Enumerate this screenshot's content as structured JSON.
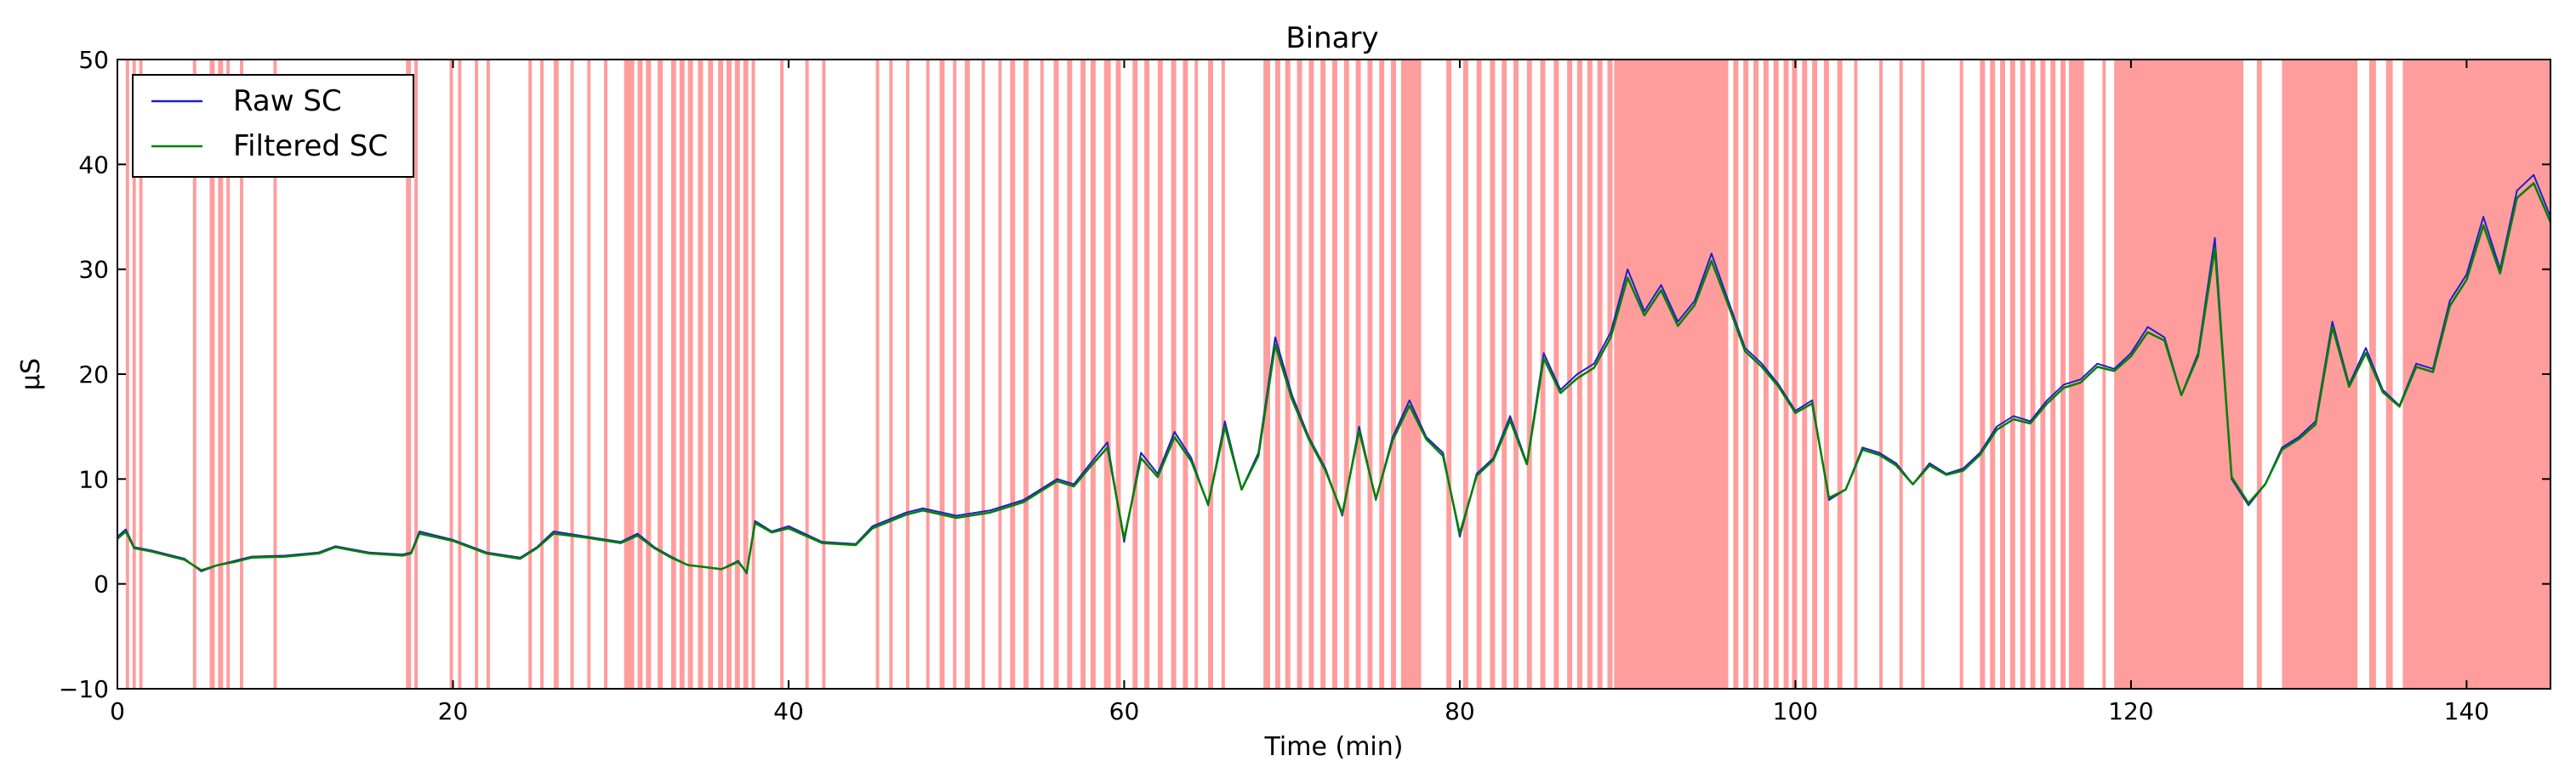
{
  "chart_data": {
    "type": "line",
    "title": "Binary",
    "xlabel": "Time (min)",
    "ylabel": "μS",
    "xlim": [
      0,
      145
    ],
    "ylim": [
      -10,
      50
    ],
    "x_ticks": [
      0,
      20,
      40,
      60,
      80,
      100,
      120,
      140
    ],
    "y_ticks": [
      -10,
      0,
      10,
      20,
      30,
      40,
      50
    ],
    "grid": false,
    "legend_position": "top-left",
    "colors": {
      "raw": "#1f1fcc",
      "filtered": "#008000",
      "shading": "#ff4c4c"
    },
    "series": [
      {
        "name": "Raw SC",
        "x": [
          0,
          0.5,
          1,
          2,
          3,
          4,
          5,
          6,
          7,
          8,
          10,
          12,
          13,
          15,
          17,
          17.5,
          18,
          20,
          22,
          24,
          25,
          26,
          28,
          30,
          31,
          32,
          33,
          34,
          35,
          36,
          37,
          37.5,
          38,
          39,
          40,
          42,
          44,
          45,
          47,
          48,
          50,
          52,
          54,
          55,
          56,
          57,
          58,
          59,
          60,
          61,
          62,
          63,
          64,
          65,
          66,
          67,
          68,
          69,
          70,
          71,
          72,
          73,
          74,
          75,
          76,
          77,
          78,
          79,
          80,
          81,
          82,
          83,
          84,
          85,
          86,
          87,
          88,
          89,
          90,
          91,
          92,
          93,
          94,
          95,
          96,
          97,
          98,
          99,
          100,
          101,
          102,
          103,
          104,
          105,
          106,
          107,
          108,
          109,
          110,
          111,
          112,
          113,
          114,
          115,
          116,
          117,
          118,
          119,
          120,
          121,
          122,
          123,
          124,
          125,
          126,
          127,
          128,
          129,
          130,
          131,
          132,
          133,
          134,
          135,
          136,
          137,
          138,
          139,
          140,
          141,
          142,
          143,
          144,
          145
        ],
        "y": [
          4.5,
          5.2,
          3.5,
          3.2,
          2.8,
          2.4,
          1.2,
          1.8,
          2.2,
          2.6,
          2.7,
          3.0,
          3.6,
          3.0,
          2.8,
          3.0,
          5.0,
          4.2,
          3.0,
          2.5,
          3.5,
          5.0,
          4.5,
          4.0,
          4.8,
          3.5,
          2.6,
          1.8,
          1.6,
          1.4,
          2.2,
          1.0,
          6.0,
          5.0,
          5.5,
          4.0,
          3.8,
          5.5,
          6.8,
          7.2,
          6.5,
          7.0,
          8.0,
          9.0,
          10.0,
          9.5,
          11.5,
          13.5,
          4.0,
          12.5,
          10.5,
          14.5,
          12.0,
          7.5,
          15.5,
          9.0,
          12.5,
          23.5,
          18.0,
          14.0,
          11.0,
          6.5,
          15.0,
          8.0,
          14.0,
          17.5,
          14.0,
          12.5,
          4.5,
          10.5,
          12.0,
          16.0,
          11.5,
          22.0,
          18.5,
          20.0,
          21.0,
          24.0,
          30.0,
          26.0,
          28.5,
          25.0,
          27.0,
          31.5,
          27.0,
          22.5,
          21.0,
          19.0,
          16.5,
          17.5,
          8.0,
          9.0,
          13.0,
          12.5,
          11.5,
          9.5,
          11.5,
          10.5,
          11.0,
          12.5,
          15.0,
          16.0,
          15.5,
          17.5,
          19.0,
          19.5,
          21.0,
          20.5,
          22.0,
          24.5,
          23.5,
          18.0,
          22.0,
          33.0,
          10.0,
          7.5,
          9.5,
          13.0,
          14.0,
          15.5,
          25.0,
          19.0,
          22.5,
          18.5,
          17.0,
          21.0,
          20.5,
          27.0,
          29.5,
          35.0,
          30.0,
          37.5,
          39.0,
          35.0
        ]
      },
      {
        "name": "Filtered SC",
        "x": [
          0,
          0.5,
          1,
          2,
          3,
          4,
          5,
          6,
          7,
          8,
          10,
          12,
          13,
          15,
          17,
          17.5,
          18,
          20,
          22,
          24,
          25,
          26,
          28,
          30,
          31,
          32,
          33,
          34,
          35,
          36,
          37,
          37.5,
          38,
          39,
          40,
          42,
          44,
          45,
          47,
          48,
          50,
          52,
          54,
          55,
          56,
          57,
          58,
          59,
          60,
          61,
          62,
          63,
          64,
          65,
          66,
          67,
          68,
          69,
          70,
          71,
          72,
          73,
          74,
          75,
          76,
          77,
          78,
          79,
          80,
          81,
          82,
          83,
          84,
          85,
          86,
          87,
          88,
          89,
          90,
          91,
          92,
          93,
          94,
          95,
          96,
          97,
          98,
          99,
          100,
          101,
          102,
          103,
          104,
          105,
          106,
          107,
          108,
          109,
          110,
          111,
          112,
          113,
          114,
          115,
          116,
          117,
          118,
          119,
          120,
          121,
          122,
          123,
          124,
          125,
          126,
          127,
          128,
          129,
          130,
          131,
          132,
          133,
          134,
          135,
          136,
          137,
          138,
          139,
          140,
          141,
          142,
          143,
          144,
          145
        ],
        "y": [
          4.3,
          5.0,
          3.4,
          3.1,
          2.7,
          2.3,
          1.3,
          1.8,
          2.1,
          2.5,
          2.6,
          2.9,
          3.5,
          2.9,
          2.7,
          2.9,
          4.8,
          4.1,
          2.9,
          2.4,
          3.4,
          4.8,
          4.4,
          3.9,
          4.6,
          3.4,
          2.5,
          1.8,
          1.6,
          1.4,
          2.1,
          1.1,
          5.8,
          4.9,
          5.3,
          3.9,
          3.7,
          5.3,
          6.6,
          7.0,
          6.3,
          6.8,
          7.8,
          8.8,
          9.8,
          9.3,
          11.2,
          13.0,
          4.3,
          12.0,
          10.2,
          14.0,
          11.7,
          7.6,
          15.0,
          9.0,
          12.2,
          22.8,
          17.6,
          13.8,
          10.8,
          6.7,
          14.6,
          8.1,
          13.7,
          17.0,
          13.8,
          12.2,
          4.8,
          10.3,
          11.8,
          15.6,
          11.4,
          21.5,
          18.2,
          19.6,
          20.6,
          23.5,
          29.2,
          25.6,
          28.0,
          24.6,
          26.6,
          30.8,
          26.6,
          22.2,
          20.7,
          18.8,
          16.3,
          17.2,
          8.2,
          9.0,
          12.8,
          12.3,
          11.3,
          9.5,
          11.3,
          10.4,
          10.8,
          12.3,
          14.7,
          15.7,
          15.3,
          17.2,
          18.7,
          19.2,
          20.7,
          20.3,
          21.7,
          24.0,
          23.2,
          18.0,
          21.7,
          32.0,
          10.2,
          7.7,
          9.5,
          12.8,
          13.8,
          15.2,
          24.5,
          18.8,
          22.0,
          18.3,
          16.9,
          20.7,
          20.2,
          26.5,
          29.0,
          34.2,
          29.6,
          36.8,
          38.2,
          34.5
        ]
      }
    ],
    "binary_regions": [
      [
        0.5,
        0.7
      ],
      [
        0.9,
        1.1
      ],
      [
        1.3,
        1.5
      ],
      [
        4.5,
        4.7
      ],
      [
        5.5,
        5.8
      ],
      [
        6.0,
        6.3
      ],
      [
        6.5,
        6.7
      ],
      [
        7.3,
        7.5
      ],
      [
        9.3,
        9.5
      ],
      [
        17.2,
        17.5
      ],
      [
        17.7,
        17.9
      ],
      [
        19.8,
        20.0
      ],
      [
        20.3,
        20.5
      ],
      [
        21.3,
        21.5
      ],
      [
        22.0,
        22.2
      ],
      [
        24.5,
        24.7
      ],
      [
        25.2,
        25.4
      ],
      [
        26.0,
        26.3
      ],
      [
        27.0,
        27.2
      ],
      [
        28.0,
        28.2
      ],
      [
        29.0,
        29.2
      ],
      [
        30.2,
        30.8
      ],
      [
        31.0,
        31.3
      ],
      [
        31.5,
        31.8
      ],
      [
        32.2,
        32.5
      ],
      [
        33.0,
        33.3
      ],
      [
        33.5,
        33.8
      ],
      [
        34.0,
        34.3
      ],
      [
        34.6,
        34.9
      ],
      [
        35.2,
        35.5
      ],
      [
        35.8,
        36.1
      ],
      [
        36.3,
        36.6
      ],
      [
        36.8,
        37.1
      ],
      [
        37.3,
        37.6
      ],
      [
        37.8,
        38.0
      ],
      [
        39.5,
        39.7
      ],
      [
        41.0,
        41.2
      ],
      [
        42.0,
        42.2
      ],
      [
        45.2,
        45.4
      ],
      [
        46.0,
        46.2
      ],
      [
        47.0,
        47.2
      ],
      [
        48.2,
        48.4
      ],
      [
        49.0,
        49.3
      ],
      [
        49.8,
        50.0
      ],
      [
        50.5,
        50.8
      ],
      [
        51.5,
        51.7
      ],
      [
        52.5,
        52.7
      ],
      [
        53.2,
        53.5
      ],
      [
        54.0,
        54.3
      ],
      [
        55.0,
        55.2
      ],
      [
        55.8,
        56.1
      ],
      [
        56.6,
        56.9
      ],
      [
        57.4,
        57.7
      ],
      [
        58.0,
        58.3
      ],
      [
        58.8,
        59.2
      ],
      [
        59.5,
        59.8
      ],
      [
        60.5,
        60.8
      ],
      [
        61.2,
        61.5
      ],
      [
        62.0,
        62.3
      ],
      [
        62.8,
        63.1
      ],
      [
        63.5,
        63.8
      ],
      [
        64.2,
        64.4
      ],
      [
        65.0,
        65.3
      ],
      [
        65.8,
        66.0
      ],
      [
        68.3,
        68.7
      ],
      [
        69.0,
        69.3
      ],
      [
        69.6,
        69.9
      ],
      [
        70.3,
        70.6
      ],
      [
        71.0,
        71.3
      ],
      [
        71.7,
        72.0
      ],
      [
        72.4,
        72.7
      ],
      [
        73.1,
        73.4
      ],
      [
        73.8,
        74.1
      ],
      [
        74.5,
        74.8
      ],
      [
        75.2,
        75.5
      ],
      [
        75.9,
        76.2
      ],
      [
        76.5,
        77.7
      ],
      [
        79.2,
        79.5
      ],
      [
        80.2,
        80.5
      ],
      [
        81.0,
        81.3
      ],
      [
        81.8,
        82.1
      ],
      [
        82.5,
        82.8
      ],
      [
        83.2,
        83.5
      ],
      [
        84.0,
        84.3
      ],
      [
        84.8,
        85.1
      ],
      [
        85.6,
        85.9
      ],
      [
        86.4,
        86.7
      ],
      [
        87.0,
        87.3
      ],
      [
        87.6,
        87.9
      ],
      [
        88.2,
        88.5
      ],
      [
        88.8,
        89.1
      ],
      [
        89.2,
        96.0
      ],
      [
        96.3,
        96.6
      ],
      [
        96.9,
        97.2
      ],
      [
        97.5,
        97.8
      ],
      [
        98.1,
        98.4
      ],
      [
        98.7,
        99.0
      ],
      [
        99.3,
        99.6
      ],
      [
        99.8,
        100.1
      ],
      [
        100.4,
        100.7
      ],
      [
        101.0,
        101.3
      ],
      [
        101.7,
        102.0
      ],
      [
        102.5,
        102.8
      ],
      [
        103.5,
        103.7
      ],
      [
        105.0,
        105.2
      ],
      [
        106.2,
        106.4
      ],
      [
        107.5,
        107.7
      ],
      [
        109.8,
        110.0
      ],
      [
        111.0,
        111.3
      ],
      [
        111.6,
        111.9
      ],
      [
        112.2,
        112.5
      ],
      [
        112.8,
        113.1
      ],
      [
        113.4,
        113.7
      ],
      [
        114.0,
        114.3
      ],
      [
        114.6,
        114.9
      ],
      [
        115.2,
        115.5
      ],
      [
        115.8,
        116.1
      ],
      [
        116.3,
        117.2
      ],
      [
        118.3,
        118.5
      ],
      [
        119.0,
        126.7
      ],
      [
        127.5,
        127.8
      ],
      [
        129.0,
        133.5
      ],
      [
        134.2,
        134.6
      ],
      [
        135.2,
        135.6
      ],
      [
        136.2,
        145.0
      ]
    ]
  }
}
